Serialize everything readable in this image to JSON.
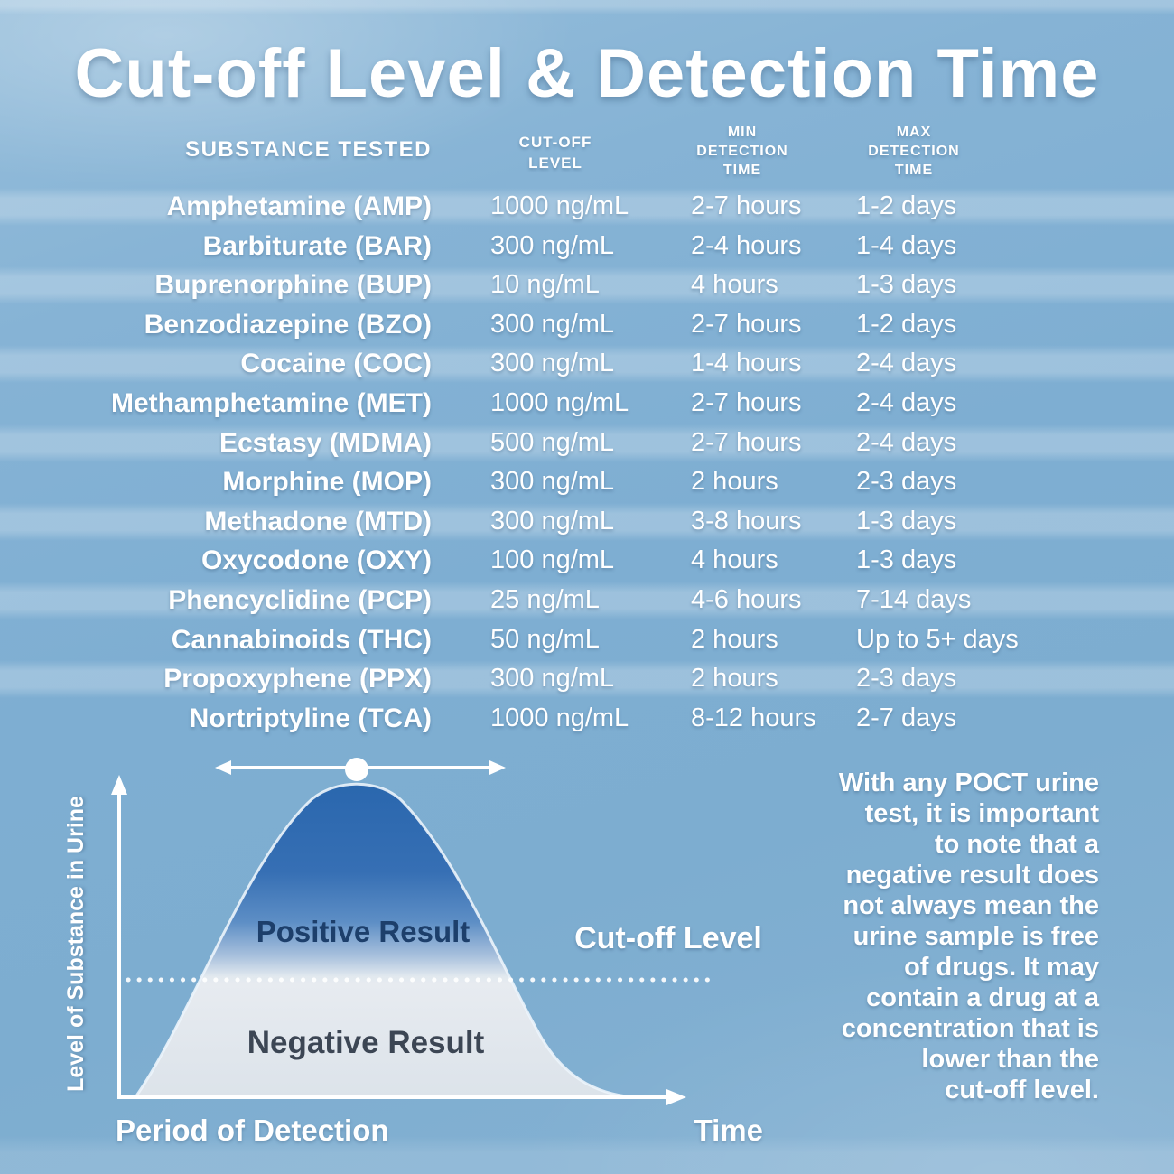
{
  "title": "Cut-off Level & Detection Time",
  "colors": {
    "background": "#7eaed2",
    "stripe_highlight": "#a6c8df",
    "text_white": "#ffffff",
    "curve_top_blue": "#2a67ae",
    "curve_below_cutoff": "#e6ebf0",
    "positive_text": "#1d3f6b",
    "negative_text": "#3c4654"
  },
  "table": {
    "headers": [
      {
        "label": "SUBSTANCE TESTED"
      },
      {
        "label": "CUT-OFF\nLEVEL"
      },
      {
        "label": "MIN\nDETECTION\nTIME"
      },
      {
        "label": "MAX\nDETECTION\nTIME"
      }
    ],
    "rows": [
      {
        "substance": "Amphetamine (AMP)",
        "cutoff": "1000 ng/mL",
        "min": "2-7 hours",
        "max": "1-2 days"
      },
      {
        "substance": "Barbiturate (BAR)",
        "cutoff": "300 ng/mL",
        "min": "2-4 hours",
        "max": "1-4 days"
      },
      {
        "substance": "Buprenorphine (BUP)",
        "cutoff": "10 ng/mL",
        "min": "4 hours",
        "max": "1-3 days"
      },
      {
        "substance": "Benzodiazepine (BZO)",
        "cutoff": "300 ng/mL",
        "min": "2-7 hours",
        "max": "1-2 days"
      },
      {
        "substance": "Cocaine (COC)",
        "cutoff": "300 ng/mL",
        "min": "1-4 hours",
        "max": "2-4 days"
      },
      {
        "substance": "Methamphetamine (MET)",
        "cutoff": "1000 ng/mL",
        "min": "2-7 hours",
        "max": "2-4 days"
      },
      {
        "substance": "Ecstasy (MDMA)",
        "cutoff": "500 ng/mL",
        "min": "2-7 hours",
        "max": "2-4 days"
      },
      {
        "substance": "Morphine (MOP)",
        "cutoff": "300 ng/mL",
        "min": "2 hours",
        "max": "2-3 days"
      },
      {
        "substance": "Methadone (MTD)",
        "cutoff": "300 ng/mL",
        "min": "3-8 hours",
        "max": "1-3 days"
      },
      {
        "substance": "Oxycodone (OXY)",
        "cutoff": "100 ng/mL",
        "min": "4 hours",
        "max": "1-3 days"
      },
      {
        "substance": "Phencyclidine (PCP)",
        "cutoff": "25 ng/mL",
        "min": "4-6 hours",
        "max": "7-14 days"
      },
      {
        "substance": "Cannabinoids (THC)",
        "cutoff": "50 ng/mL",
        "min": "2 hours",
        "max": "Up to 5+ days"
      },
      {
        "substance": "Propoxyphene (PPX)",
        "cutoff": "300 ng/mL",
        "min": "2 hours",
        "max": "2-3 days"
      },
      {
        "substance": "Nortriptyline (TCA)",
        "cutoff": "1000 ng/mL",
        "min": "8-12 hours",
        "max": "2-7 days"
      }
    ]
  },
  "chart": {
    "y_axis_label": "Level of Substance in Urine",
    "x_axis_label": "Time",
    "x_period_label": "Period of Detection",
    "cutoff_label": "Cut-off Level",
    "positive_label": "Positive Result",
    "negative_label": "Negative Result"
  },
  "note": "With any POCT urine\ntest, it is important\nto note that a\nnegative result does\nnot always mean the\nurine sample is free\nof drugs. It may\ncontain a drug at a\nconcentration that is\nlower than the\ncut-off level.",
  "chart_data": [
    {
      "type": "table",
      "title": "Cut-off Level & Detection Time",
      "columns": [
        "Substance Tested",
        "Cut-off Level",
        "Min Detection Time",
        "Max Detection Time"
      ],
      "rows": [
        [
          "Amphetamine (AMP)",
          "1000 ng/mL",
          "2-7 hours",
          "1-2 days"
        ],
        [
          "Barbiturate (BAR)",
          "300 ng/mL",
          "2-4 hours",
          "1-4 days"
        ],
        [
          "Buprenorphine (BUP)",
          "10 ng/mL",
          "4 hours",
          "1-3 days"
        ],
        [
          "Benzodiazepine (BZO)",
          "300 ng/mL",
          "2-7 hours",
          "1-2 days"
        ],
        [
          "Cocaine (COC)",
          "300 ng/mL",
          "1-4 hours",
          "2-4 days"
        ],
        [
          "Methamphetamine (MET)",
          "1000 ng/mL",
          "2-7 hours",
          "2-4 days"
        ],
        [
          "Ecstasy (MDMA)",
          "500 ng/mL",
          "2-7 hours",
          "2-4 days"
        ],
        [
          "Morphine (MOP)",
          "300 ng/mL",
          "2 hours",
          "2-3 days"
        ],
        [
          "Methadone (MTD)",
          "300 ng/mL",
          "3-8 hours",
          "1-3 days"
        ],
        [
          "Oxycodone (OXY)",
          "100 ng/mL",
          "4 hours",
          "1-3 days"
        ],
        [
          "Phencyclidine (PCP)",
          "25 ng/mL",
          "4-6 hours",
          "7-14 days"
        ],
        [
          "Cannabinoids (THC)",
          "50 ng/mL",
          "2 hours",
          "Up to 5+ days"
        ],
        [
          "Propoxyphene (PPX)",
          "300 ng/mL",
          "2 hours",
          "2-3 days"
        ],
        [
          "Nortriptyline (TCA)",
          "1000 ng/mL",
          "8-12 hours",
          "2-7 days"
        ]
      ]
    },
    {
      "type": "area",
      "title": "Detection window concept diagram",
      "xlabel": "Time",
      "ylabel": "Level of Substance in Urine",
      "x": [
        0,
        0.1,
        0.2,
        0.3,
        0.42,
        0.55,
        0.7,
        0.85,
        1
      ],
      "values": [
        0,
        0.25,
        0.62,
        0.92,
        1,
        0.85,
        0.5,
        0.15,
        0
      ],
      "annotations": [
        "Positive Result (above cut-off)",
        "Negative Result (below cut-off)",
        "Cut-off Level (dashed horizontal line at ~0.37 of peak)",
        "Period of Detection (double arrow at peak)"
      ],
      "axis_ranges": "conceptual, unlabeled axes",
      "grid": false,
      "legend": "none"
    }
  ]
}
